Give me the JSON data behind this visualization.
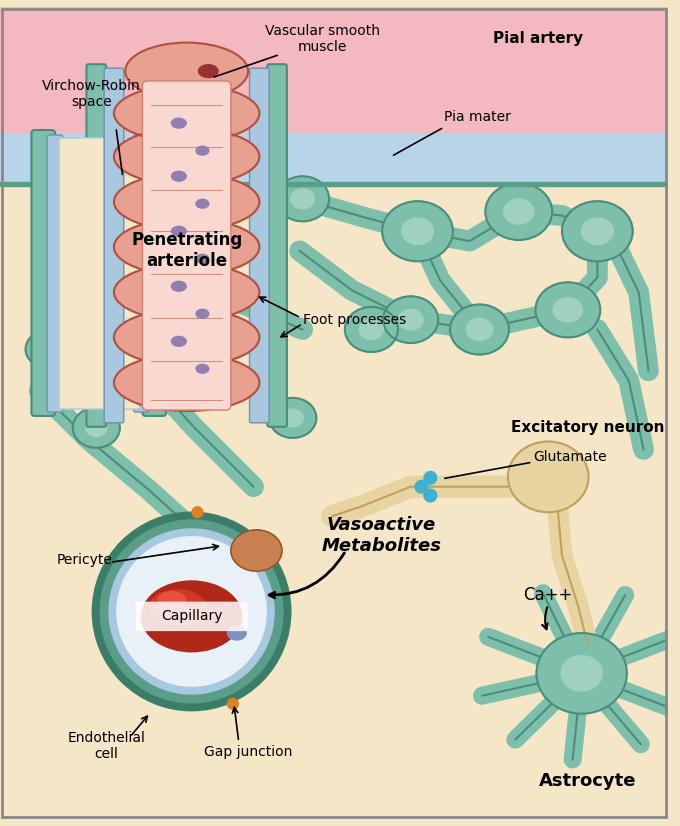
{
  "bg_color": "#f5e6c8",
  "pial_color": "#f4b8c1",
  "pia_mater_color": "#b8d4e8",
  "arteriole_outer_color": "#e8a090",
  "arteriole_inner_color": "#f0c0b0",
  "astrocyte_color": "#7dbfaa",
  "neuron_color": "#e8d4a0",
  "glutamate_color": "#40b0d0",
  "labels": {
    "pial_artery": "Pial artery",
    "virchow_robin": "Virchow-Robin\nspace",
    "vascular_smooth": "Vascular smooth\nmuscle",
    "pia_mater": "Pia mater",
    "penetrating": "Penetrating\narteriole",
    "foot_processes": "Foot processes",
    "excitatory_neuron": "Excitatory neuron",
    "glutamate": "Glutamate",
    "vasoactive": "Vasoactive\nMetabolites",
    "ca": "Ca++",
    "capillary": "Capillary",
    "pericyte": "Pericyte",
    "endothelial": "Endothelial\ncell",
    "gap_junction": "Gap junction",
    "astrocyte": "Astrocyte"
  }
}
